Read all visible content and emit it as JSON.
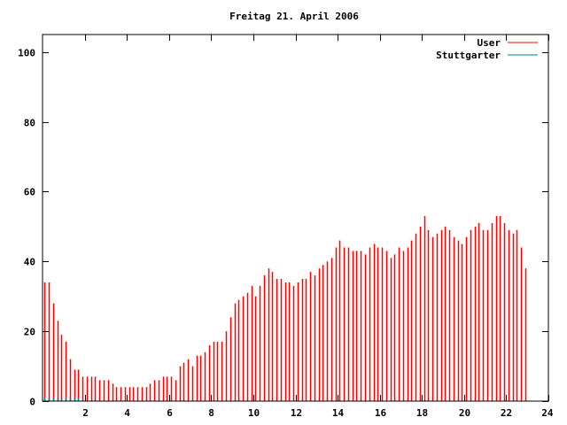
{
  "chart_data": {
    "type": "bar",
    "title": "Freitag 21. April 2006",
    "xlabel": "",
    "ylabel": "",
    "xlim": [
      0,
      24
    ],
    "ylim": [
      0,
      105
    ],
    "x_ticks": [
      2,
      4,
      6,
      8,
      10,
      12,
      14,
      16,
      18,
      20,
      22,
      24
    ],
    "x_tick_labels": [
      "2",
      "4",
      "6",
      "8",
      "10",
      "12",
      "14",
      "16",
      "18",
      "20",
      "22",
      "24"
    ],
    "y_ticks": [
      0,
      20,
      40,
      60,
      80,
      100
    ],
    "y_tick_labels": [
      "0",
      "20",
      "40",
      "60",
      "80",
      "100"
    ],
    "grid": false,
    "legend_position": "top-right",
    "series": [
      {
        "name": "User",
        "color": "#ff0000",
        "x_start": 0.1,
        "x_step": 0.2,
        "values": [
          34,
          34,
          28,
          23,
          19,
          17,
          12,
          9,
          9,
          7,
          7,
          7,
          7,
          6,
          6,
          6,
          5,
          4,
          4,
          4,
          4,
          4,
          4,
          4,
          4,
          5,
          6,
          6,
          7,
          7,
          7,
          6,
          10,
          11,
          12,
          10,
          13,
          13,
          14,
          16,
          17,
          17,
          17,
          20,
          24,
          28,
          29,
          30,
          31,
          33,
          30,
          33,
          36,
          38,
          37,
          35,
          35,
          34,
          34,
          33,
          34,
          35,
          35,
          37,
          36,
          38,
          39,
          40,
          41,
          44,
          46,
          44,
          44,
          43,
          43,
          43,
          42,
          44,
          45,
          44,
          44,
          43,
          41,
          42,
          44,
          43,
          44,
          46,
          48,
          50,
          53,
          49,
          47,
          48,
          49,
          50,
          49,
          47,
          46,
          45,
          47,
          49,
          50,
          51,
          49,
          49,
          51,
          53,
          53,
          51,
          49,
          48,
          49,
          44,
          38
        ]
      },
      {
        "name": "Stuttgarter",
        "color": "#008080",
        "x_start": 0.1,
        "x_step": 0.2,
        "values": [
          1,
          1,
          1,
          1,
          1,
          1,
          1,
          1,
          1,
          0,
          0,
          0,
          0,
          0,
          0,
          0,
          0,
          0,
          0,
          0,
          0,
          0,
          0,
          0,
          0,
          0,
          0,
          0,
          0,
          0,
          0,
          0,
          0,
          0,
          0,
          0,
          0,
          0,
          0,
          0,
          0,
          0,
          0,
          0,
          0,
          0,
          0,
          0,
          0,
          0,
          0,
          0,
          0,
          0,
          0,
          0,
          0,
          0,
          0,
          0,
          0,
          0,
          0,
          0,
          0,
          0,
          0,
          0,
          0,
          0,
          0,
          0,
          0,
          0,
          0,
          0,
          0,
          0,
          0,
          0,
          0,
          0,
          0,
          0,
          0,
          0,
          0,
          0,
          0,
          0,
          0,
          0,
          0,
          0,
          0,
          0,
          0,
          0,
          0,
          0,
          0,
          0,
          0,
          0,
          0,
          0,
          0,
          0,
          0,
          0,
          0,
          0,
          0,
          0,
          0
        ]
      }
    ]
  }
}
